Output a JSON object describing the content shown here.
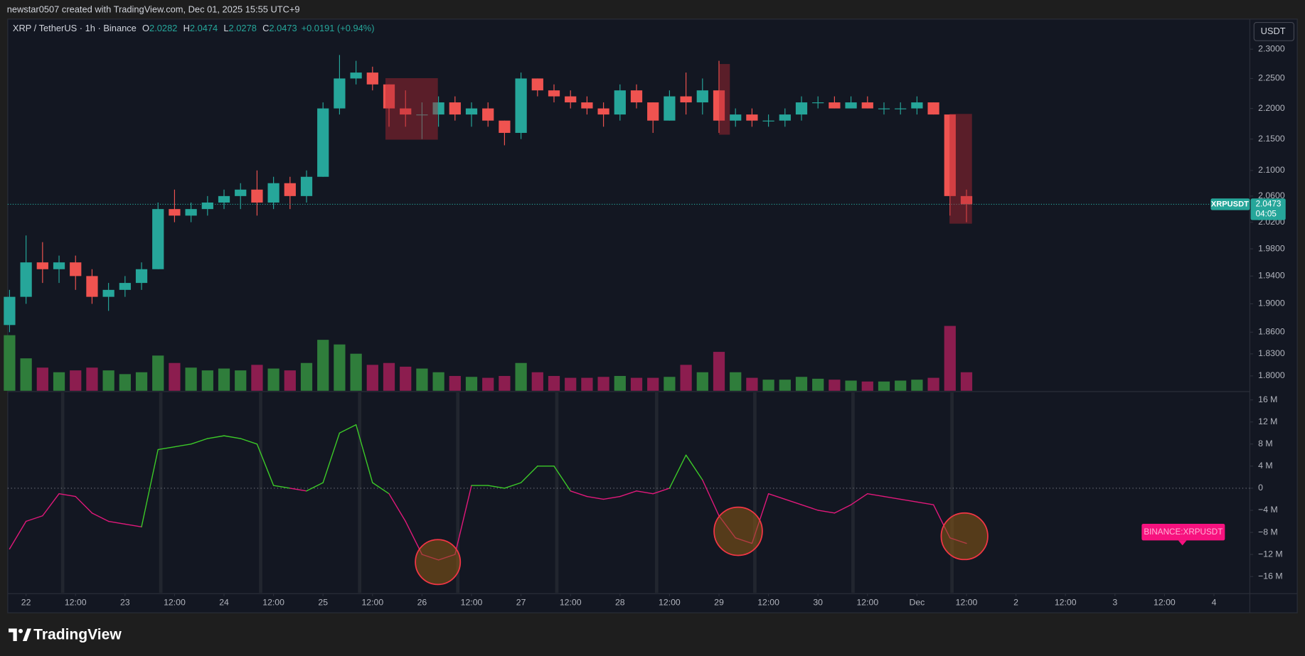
{
  "header": {
    "credit": "newstar0507 created with TradingView.com, Dec 01, 2025 15:55 UTC+9"
  },
  "legend": {
    "symbol": "XRP / TetherUS · 1h · Binance",
    "items": [
      {
        "key": "O",
        "value": "2.0282"
      },
      {
        "key": "H",
        "value": "2.0474"
      },
      {
        "key": "L",
        "value": "2.0278"
      },
      {
        "key": "C",
        "value": "2.0473"
      }
    ],
    "change": "+0.0191 (+0.94%)"
  },
  "price_axis_unit": "USDT",
  "price_tag": {
    "symbol": "XRPUSDT",
    "price": "2.0473",
    "countdown": "04:05"
  },
  "indicator_tag": "BINANCE:XRPUSDT",
  "brand": "TradingView",
  "chart_data": [
    {
      "type": "candlestick",
      "x": [
        -4,
        0,
        4,
        8,
        12,
        16,
        20,
        24,
        28,
        32,
        36,
        40,
        44,
        48,
        52,
        56,
        60,
        64,
        68,
        72,
        76,
        80,
        84,
        88,
        92,
        96,
        100,
        104,
        108,
        112,
        116,
        120,
        124,
        128,
        132,
        136,
        140,
        144,
        148,
        152,
        156,
        160,
        164,
        168,
        172,
        176,
        180,
        184,
        188,
        192,
        196,
        200,
        204,
        208,
        212,
        216,
        220,
        224,
        228
      ],
      "open": [
        1.87,
        1.91,
        1.96,
        1.95,
        1.96,
        1.94,
        1.91,
        1.92,
        1.93,
        1.95,
        2.04,
        2.03,
        2.04,
        2.05,
        2.06,
        2.07,
        2.05,
        2.08,
        2.06,
        2.09,
        2.2,
        2.25,
        2.26,
        2.24,
        2.2,
        2.19,
        2.19,
        2.21,
        2.19,
        2.2,
        2.18,
        2.16,
        2.25,
        2.23,
        2.22,
        2.21,
        2.2,
        2.19,
        2.23,
        2.21,
        2.18,
        2.22,
        2.21,
        2.23,
        2.18,
        2.19,
        2.18,
        2.18,
        2.19,
        2.21,
        2.21,
        2.2,
        2.21,
        2.2,
        2.2,
        2.2,
        2.21,
        2.19,
        2.06
      ],
      "high": [
        1.92,
        2.0,
        1.99,
        1.97,
        1.97,
        1.95,
        1.93,
        1.94,
        1.96,
        2.05,
        2.07,
        2.05,
        2.06,
        2.07,
        2.08,
        2.1,
        2.09,
        2.09,
        2.1,
        2.21,
        2.29,
        2.28,
        2.27,
        2.24,
        2.23,
        2.21,
        2.22,
        2.22,
        2.21,
        2.21,
        2.18,
        2.26,
        2.25,
        2.24,
        2.23,
        2.22,
        2.21,
        2.24,
        2.24,
        2.21,
        2.23,
        2.26,
        2.25,
        2.28,
        2.2,
        2.2,
        2.19,
        2.2,
        2.22,
        2.22,
        2.22,
        2.22,
        2.22,
        2.21,
        2.21,
        2.22,
        2.21,
        2.19,
        2.07
      ],
      "low": [
        1.86,
        1.9,
        1.93,
        1.93,
        1.92,
        1.9,
        1.89,
        1.91,
        1.92,
        1.95,
        2.02,
        2.02,
        2.03,
        2.04,
        2.04,
        2.03,
        2.04,
        2.04,
        2.05,
        2.09,
        2.19,
        2.24,
        2.23,
        2.17,
        2.17,
        2.15,
        2.17,
        2.18,
        2.17,
        2.17,
        2.14,
        2.15,
        2.22,
        2.21,
        2.2,
        2.19,
        2.17,
        2.18,
        2.2,
        2.16,
        2.18,
        2.19,
        2.19,
        2.16,
        2.17,
        2.17,
        2.17,
        2.17,
        2.18,
        2.2,
        2.2,
        2.2,
        2.2,
        2.19,
        2.19,
        2.19,
        2.19,
        2.03,
        2.02
      ],
      "close": [
        1.91,
        1.96,
        1.95,
        1.96,
        1.94,
        1.91,
        1.92,
        1.93,
        1.95,
        2.04,
        2.03,
        2.04,
        2.05,
        2.06,
        2.07,
        2.05,
        2.08,
        2.06,
        2.09,
        2.2,
        2.25,
        2.26,
        2.24,
        2.2,
        2.19,
        2.19,
        2.21,
        2.19,
        2.2,
        2.18,
        2.16,
        2.25,
        2.23,
        2.22,
        2.21,
        2.2,
        2.19,
        2.23,
        2.21,
        2.18,
        2.22,
        2.21,
        2.23,
        2.18,
        2.19,
        2.18,
        2.18,
        2.19,
        2.21,
        2.21,
        2.2,
        2.21,
        2.2,
        2.2,
        2.2,
        2.21,
        2.19,
        2.06,
        2.0473
      ],
      "volume": [
        60,
        35,
        25,
        20,
        22,
        25,
        22,
        18,
        20,
        38,
        30,
        25,
        22,
        24,
        22,
        28,
        24,
        22,
        30,
        55,
        50,
        40,
        28,
        30,
        26,
        24,
        20,
        16,
        15,
        14,
        16,
        30,
        20,
        16,
        14,
        14,
        15,
        16,
        14,
        14,
        15,
        28,
        20,
        42,
        20,
        14,
        12,
        12,
        15,
        13,
        12,
        11,
        10,
        10,
        11,
        12,
        14,
        70,
        20
      ],
      "up_color": "#26a69a",
      "down_color": "#ef5350",
      "volume_up_color": "#2f7d3b",
      "volume_down_color": "#8c1d4f",
      "xlim": [
        -4.44,
        296.7
      ],
      "ylim": [
        1.78,
        2.351
      ],
      "log_scale": true,
      "grid": false,
      "yticks": [
        {
          "value": 2.3,
          "label": "2.3000"
        },
        {
          "value": 2.25,
          "label": "2.2500"
        },
        {
          "value": 2.2,
          "label": "2.2000"
        },
        {
          "value": 2.15,
          "label": "2.1500"
        },
        {
          "value": 2.1,
          "label": "2.1000"
        },
        {
          "value": 2.06,
          "label": "2.0600"
        },
        {
          "value": 2.02,
          "label": "2.0200"
        },
        {
          "value": 1.98,
          "label": "1.9800"
        },
        {
          "value": 1.94,
          "label": "1.9400"
        },
        {
          "value": 1.9,
          "label": "1.9000"
        },
        {
          "value": 1.86,
          "label": "1.8600"
        },
        {
          "value": 1.83,
          "label": "1.8300"
        },
        {
          "value": 1.8,
          "label": "1.8000"
        }
      ]
    },
    {
      "type": "line",
      "x": [
        -4,
        0,
        4,
        8,
        12,
        16,
        20,
        24,
        28,
        32,
        36,
        40,
        44,
        48,
        52,
        56,
        60,
        64,
        68,
        72,
        76,
        80,
        84,
        88,
        92,
        96,
        100,
        104,
        108,
        112,
        116,
        120,
        124,
        128,
        132,
        136,
        140,
        144,
        148,
        152,
        156,
        160,
        164,
        168,
        172,
        176,
        180,
        184,
        188,
        192,
        196,
        200,
        204,
        208,
        212,
        216,
        220,
        224,
        228
      ],
      "values": [
        -11000000,
        -6000000,
        -5000000,
        -1000000,
        -1500000,
        -4500000,
        -6000000,
        -6500000,
        -7000000,
        7000000,
        7500000,
        8000000,
        9000000,
        9500000,
        9000000,
        8000000,
        500000,
        0,
        -500000,
        1000000,
        10000000,
        11500000,
        1000000,
        -1000000,
        -6000000,
        -12000000,
        -13000000,
        -12000000,
        500000,
        500000,
        0,
        1000000,
        4000000,
        4000000,
        -500000,
        -1500000,
        -2000000,
        -1500000,
        -500000,
        -1000000,
        0,
        6000000,
        1500000,
        -5000000,
        -9000000,
        -10000000,
        -1000000,
        -2000000,
        -3000000,
        -4000000,
        -4500000,
        -3000000,
        -1000000,
        -1500000,
        -2000000,
        -2500000,
        -3000000,
        -9000000,
        -10000000
      ],
      "pos_color": "#3cc928",
      "neg_color": "#e0187a",
      "xlim": [
        -4.44,
        296.7
      ],
      "ylim": [
        -18950000,
        17500000
      ],
      "grid": false,
      "zero_line": true,
      "yticks": [
        {
          "value": 16000000,
          "label": "16 M"
        },
        {
          "value": 12000000,
          "label": "12 M"
        },
        {
          "value": 8000000,
          "label": "8 M"
        },
        {
          "value": 4000000,
          "label": "4 M"
        },
        0,
        {
          "value": -4000000,
          "label": "−4 M"
        },
        {
          "value": -8000000,
          "label": "−8 M"
        },
        {
          "value": -12000000,
          "label": "−12 M"
        },
        {
          "value": -16000000,
          "label": "−16 M"
        }
      ],
      "xticks": [
        {
          "value": 0,
          "label": "22"
        },
        {
          "value": 12,
          "label": "12:00"
        },
        {
          "value": 24,
          "label": "23"
        },
        {
          "value": 36,
          "label": "12:00"
        },
        {
          "value": 48,
          "label": "24"
        },
        {
          "value": 60,
          "label": "12:00"
        },
        {
          "value": 72,
          "label": "25"
        },
        {
          "value": 84,
          "label": "12:00"
        },
        {
          "value": 96,
          "label": "26"
        },
        {
          "value": 108,
          "label": "12:00"
        },
        {
          "value": 120,
          "label": "27"
        },
        {
          "value": 132,
          "label": "12:00"
        },
        {
          "value": 144,
          "label": "28"
        },
        {
          "value": 156,
          "label": "12:00"
        },
        {
          "value": 168,
          "label": "29"
        },
        {
          "value": 180,
          "label": "12:00"
        },
        {
          "value": 192,
          "label": "30"
        },
        {
          "value": 204,
          "label": "12:00"
        },
        {
          "value": 216,
          "label": "Dec"
        },
        {
          "value": 228,
          "label": "12:00"
        },
        {
          "value": 240,
          "label": "2"
        },
        {
          "value": 252,
          "label": "12:00"
        },
        {
          "value": 264,
          "label": "3"
        },
        {
          "value": 276,
          "label": "12:00"
        },
        {
          "value": 288,
          "label": "4"
        }
      ]
    }
  ]
}
